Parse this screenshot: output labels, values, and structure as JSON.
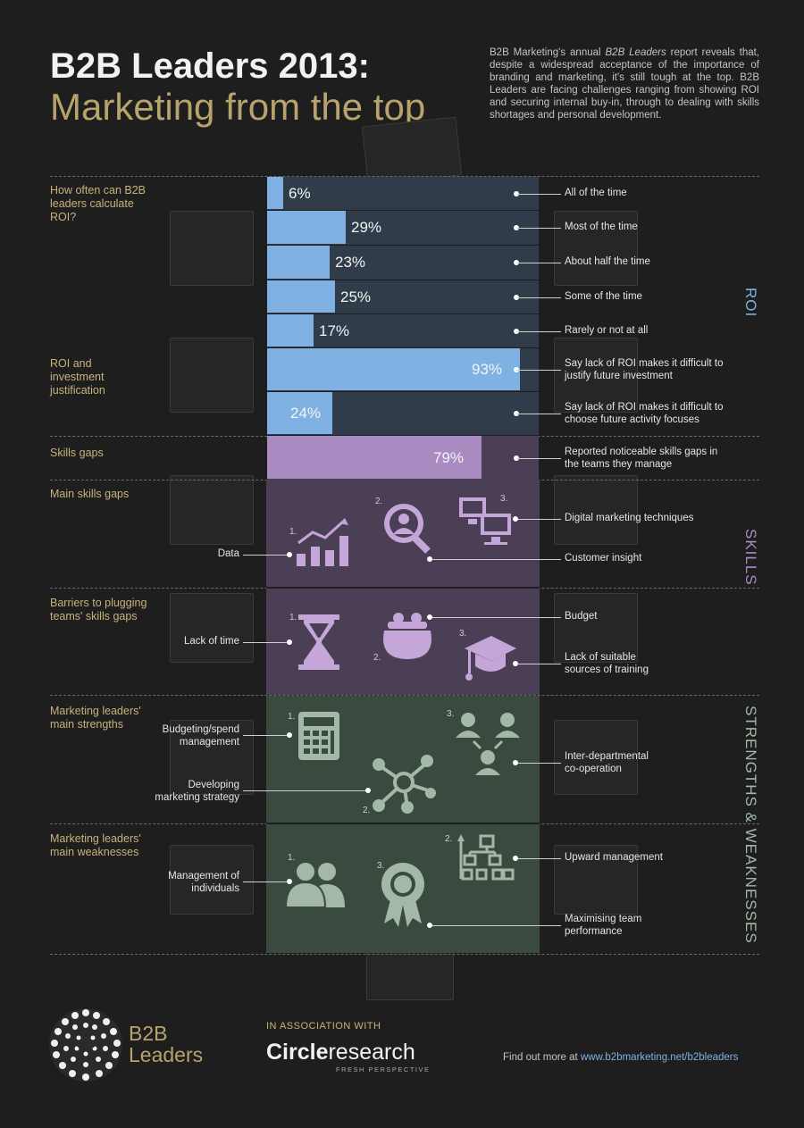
{
  "header": {
    "title_line1": "B2B Leaders 2013:",
    "title_line2": "Marketing from the top",
    "intro_pre": "B2B Marketing's annual ",
    "intro_italic": "B2B Leaders",
    "intro_post": " report reveals that, despite a widespread acceptance of the importance of branding and marketing, it's still tough at the top. B2B Leaders are facing challenges ranging from showing ROI and securing internal buy-in, through to dealing with skills shortages and personal development."
  },
  "colors": {
    "roi_bar": "#7fb2e2",
    "roi_track": "#303c49",
    "skills_bar": "#a98bc2",
    "skills_panel": "#4a3f55",
    "strengths_panel": "#3b4a3f",
    "gold": "#b7a36b"
  },
  "sections": {
    "roi": "ROI",
    "skills": "SKILLS",
    "strengths": "STRENGTHS & WEAKNESSES"
  },
  "questions": {
    "roi_calc": "How often can B2B leaders calculate ROI?",
    "roi_just": "ROI and investment justification",
    "skills_gaps": "Skills gaps",
    "main_skills": "Main skills gaps",
    "barriers": "Barriers to plugging teams' skills gaps",
    "strengths": "Marketing leaders' main strengths",
    "weaknesses": "Marketing leaders' main weaknesses"
  },
  "chart_data": {
    "type": "bar",
    "orientation": "horizontal",
    "xlim": [
      0,
      100
    ],
    "categories": [
      "All of the time",
      "Most of the time",
      "About half the time",
      "Some of the time",
      "Rarely or not at all",
      "Say lack of ROI makes it difficult to justify future investment",
      "Say lack of ROI makes it difficult to choose future activity focuses",
      "Reported noticeable skills gaps in the teams they manage"
    ],
    "values": [
      6,
      29,
      23,
      25,
      17,
      93,
      24,
      79
    ],
    "value_labels": [
      "6%",
      "29%",
      "23%",
      "25%",
      "17%",
      "93%",
      "24%",
      "79%"
    ]
  },
  "skills_items": {
    "data": "Data",
    "customer_insight": "Customer insight",
    "digital": "Digital marketing techniques",
    "n1": "1.",
    "n2": "2.",
    "n3": "3."
  },
  "barrier_items": {
    "time": "Lack of time",
    "budget": "Budget",
    "training": "Lack of suitable sources of training"
  },
  "strength_items": {
    "budgeting": "Budgeting/spend management",
    "strategy": "Developing marketing strategy",
    "interdept": "Inter-departmental co-operation"
  },
  "weakness_items": {
    "individuals": "Management of individuals",
    "upward": "Upward management",
    "team": "Maximising team performance"
  },
  "footer": {
    "logo_line1": "B2B",
    "logo_line2": "Leaders",
    "assoc": "IN ASSOCIATION WITH",
    "partner_bold": "Circle",
    "partner_light": "research",
    "partner_tag": "FRESH PERSPECTIVE",
    "more_text": "Find out more at ",
    "more_link": "www.b2bmarketing.net/b2bleaders"
  }
}
